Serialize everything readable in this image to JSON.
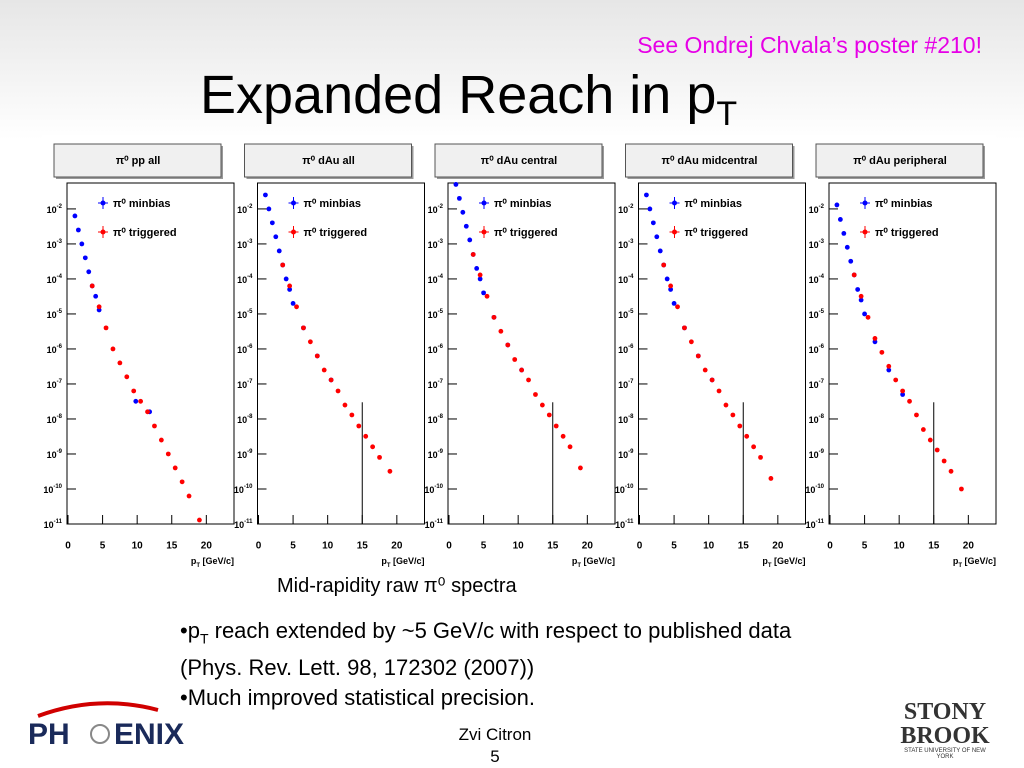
{
  "slide": {
    "note": "See Ondrej Chvala’s poster #210!",
    "title": {
      "base": "Expanded Reach in p",
      "sub": "T"
    },
    "caption": "Mid-rapidity raw π⁰ spectra",
    "bullets": [
      {
        "base": "•p",
        "sub": "T",
        "rest": " reach extended by ~5 GeV/c with respect to published data (Phys. Rev. Lett. 98, 172302 (2007))"
      },
      {
        "base": "•Much improved statistical precision.",
        "sub": "",
        "rest": ""
      }
    ],
    "author": "Zvi Citron",
    "page": "5",
    "logo_left": {
      "a": "PH",
      "b": "ENIX"
    },
    "logo_right": {
      "a": "STONY",
      "b": "BROOK",
      "c": "STATE UNIVERSITY OF NEW YORK"
    }
  },
  "chart_data": [
    {
      "type": "scatter",
      "title": "π⁰ pp all",
      "log_y": true,
      "xlabel": {
        "base": "p",
        "sub": "T",
        "rest": " [GeV/c]"
      },
      "xlim": [
        0,
        24
      ],
      "ylim": [
        1e-11,
        0.055
      ],
      "xticks": [
        0,
        5,
        10,
        15,
        20
      ],
      "yticks": [
        {
          "value": 1e-11,
          "label": "10",
          "exponent": "-11"
        },
        {
          "value": 1e-10,
          "label": "10",
          "exponent": "-10"
        },
        {
          "value": 1e-09,
          "label": "10",
          "exponent": "-9"
        },
        {
          "value": 1e-08,
          "label": "10",
          "exponent": "-8"
        },
        {
          "value": 1e-07,
          "label": "10",
          "exponent": "-7"
        },
        {
          "value": 1e-06,
          "label": "10",
          "exponent": "-6"
        },
        {
          "value": 1e-05,
          "label": "10",
          "exponent": "-5"
        },
        {
          "value": 0.0001,
          "label": "10",
          "exponent": "-4"
        },
        {
          "value": 0.001,
          "label": "10",
          "exponent": "-3"
        },
        {
          "value": 0.01,
          "label": "10",
          "exponent": "-2"
        }
      ],
      "series": [
        {
          "name": "π⁰ minbias",
          "color": "#0000ff",
          "x": [
            1,
            1.5,
            2,
            2.5,
            3,
            3.5,
            4,
            4.5,
            9.8,
            11.8
          ],
          "values": [
            0.0063,
            0.0025,
            0.001,
            0.0004,
            0.00016,
            6.3e-05,
            3.2e-05,
            1.3e-05,
            3.2e-08,
            1.6e-08
          ]
        },
        {
          "name": "π⁰ triggered",
          "color": "#ff0000",
          "x": [
            3.5,
            4.5,
            5.5,
            6.5,
            7.5,
            8.5,
            9.5,
            10.5,
            11.5,
            12.5,
            13.5,
            14.5,
            15.5,
            16.5,
            17.5,
            19
          ],
          "values": [
            6.3e-05,
            1.6e-05,
            4e-06,
            1e-06,
            4e-07,
            1.6e-07,
            6.3e-08,
            3.2e-08,
            1.6e-08,
            6.3e-09,
            2.5e-09,
            1e-09,
            4e-10,
            1.6e-10,
            6.3e-11,
            1.3e-11
          ]
        }
      ]
    },
    {
      "type": "scatter",
      "title": "π⁰ dAu all",
      "log_y": true,
      "xlabel": {
        "base": "p",
        "sub": "T",
        "rest": " [GeV/c]"
      },
      "xlim": [
        0,
        24
      ],
      "ylim": [
        1e-11,
        0.055
      ],
      "xticks": [
        0,
        5,
        10,
        15,
        20
      ],
      "yticks": [
        {
          "value": 1e-11,
          "label": "10",
          "exponent": "-11"
        },
        {
          "value": 1e-10,
          "label": "10",
          "exponent": "-10"
        },
        {
          "value": 1e-09,
          "label": "10",
          "exponent": "-9"
        },
        {
          "value": 1e-08,
          "label": "10",
          "exponent": "-8"
        },
        {
          "value": 1e-07,
          "label": "10",
          "exponent": "-7"
        },
        {
          "value": 1e-06,
          "label": "10",
          "exponent": "-6"
        },
        {
          "value": 1e-05,
          "label": "10",
          "exponent": "-5"
        },
        {
          "value": 0.0001,
          "label": "10",
          "exponent": "-4"
        },
        {
          "value": 0.001,
          "label": "10",
          "exponent": "-3"
        },
        {
          "value": 0.01,
          "label": "10",
          "exponent": "-2"
        }
      ],
      "vline": {
        "x": 15,
        "top": 3e-08
      },
      "series": [
        {
          "name": "π⁰ minbias",
          "color": "#0000ff",
          "x": [
            1,
            1.5,
            2,
            2.5,
            3,
            3.5,
            4,
            4.5,
            5,
            6.5,
            8.5,
            10.5
          ],
          "values": [
            0.025,
            0.01,
            0.004,
            0.0016,
            0.00063,
            0.00025,
            0.0001,
            5e-05,
            2e-05,
            4e-06,
            6.3e-07,
            1.3e-07
          ]
        },
        {
          "name": "π⁰ triggered",
          "color": "#ff0000",
          "x": [
            3.5,
            4.5,
            5.5,
            6.5,
            7.5,
            8.5,
            9.5,
            10.5,
            11.5,
            12.5,
            13.5,
            14.5,
            15.5,
            16.5,
            17.5,
            19
          ],
          "values": [
            0.00025,
            6.3e-05,
            1.6e-05,
            4e-06,
            1.6e-06,
            6.3e-07,
            2.5e-07,
            1.3e-07,
            6.3e-08,
            2.5e-08,
            1.3e-08,
            6.3e-09,
            3.2e-09,
            1.6e-09,
            8e-10,
            3.2e-10
          ]
        }
      ]
    },
    {
      "type": "scatter",
      "title": "π⁰ dAu central",
      "log_y": true,
      "xlabel": {
        "base": "p",
        "sub": "T",
        "rest": " [GeV/c]"
      },
      "xlim": [
        0,
        24
      ],
      "ylim": [
        1e-11,
        0.055
      ],
      "xticks": [
        0,
        5,
        10,
        15,
        20
      ],
      "yticks": [
        {
          "value": 1e-11,
          "label": "10",
          "exponent": "-11"
        },
        {
          "value": 1e-10,
          "label": "10",
          "exponent": "-10"
        },
        {
          "value": 1e-09,
          "label": "10",
          "exponent": "-9"
        },
        {
          "value": 1e-08,
          "label": "10",
          "exponent": "-8"
        },
        {
          "value": 1e-07,
          "label": "10",
          "exponent": "-7"
        },
        {
          "value": 1e-06,
          "label": "10",
          "exponent": "-6"
        },
        {
          "value": 1e-05,
          "label": "10",
          "exponent": "-5"
        },
        {
          "value": 0.0001,
          "label": "10",
          "exponent": "-4"
        },
        {
          "value": 0.001,
          "label": "10",
          "exponent": "-3"
        },
        {
          "value": 0.01,
          "label": "10",
          "exponent": "-2"
        }
      ],
      "vline": {
        "x": 15,
        "top": 3e-08
      },
      "series": [
        {
          "name": "π⁰ minbias",
          "color": "#0000ff",
          "x": [
            1,
            1.5,
            2,
            2.5,
            3,
            3.5,
            4,
            4.5,
            5,
            6.5,
            8.5,
            10.5
          ],
          "values": [
            0.05,
            0.02,
            0.008,
            0.0032,
            0.0013,
            0.0005,
            0.0002,
            0.0001,
            4e-05,
            8e-06,
            1.3e-06,
            2.5e-07
          ]
        },
        {
          "name": "π⁰ triggered",
          "color": "#ff0000",
          "x": [
            3.5,
            4.5,
            5.5,
            6.5,
            7.5,
            8.5,
            9.5,
            10.5,
            11.5,
            12.5,
            13.5,
            14.5,
            15.5,
            16.5,
            17.5,
            19
          ],
          "values": [
            0.0005,
            0.00013,
            3.2e-05,
            8e-06,
            3.2e-06,
            1.3e-06,
            5e-07,
            2.5e-07,
            1.3e-07,
            5e-08,
            2.5e-08,
            1.3e-08,
            6.3e-09,
            3.2e-09,
            1.6e-09,
            4e-10
          ]
        }
      ]
    },
    {
      "type": "scatter",
      "title": "π⁰ dAu midcentral",
      "log_y": true,
      "xlabel": {
        "base": "p",
        "sub": "T",
        "rest": " [GeV/c]"
      },
      "xlim": [
        0,
        24
      ],
      "ylim": [
        1e-11,
        0.055
      ],
      "xticks": [
        0,
        5,
        10,
        15,
        20
      ],
      "yticks": [
        {
          "value": 1e-11,
          "label": "10",
          "exponent": "-11"
        },
        {
          "value": 1e-10,
          "label": "10",
          "exponent": "-10"
        },
        {
          "value": 1e-09,
          "label": "10",
          "exponent": "-9"
        },
        {
          "value": 1e-08,
          "label": "10",
          "exponent": "-8"
        },
        {
          "value": 1e-07,
          "label": "10",
          "exponent": "-7"
        },
        {
          "value": 1e-06,
          "label": "10",
          "exponent": "-6"
        },
        {
          "value": 1e-05,
          "label": "10",
          "exponent": "-5"
        },
        {
          "value": 0.0001,
          "label": "10",
          "exponent": "-4"
        },
        {
          "value": 0.001,
          "label": "10",
          "exponent": "-3"
        },
        {
          "value": 0.01,
          "label": "10",
          "exponent": "-2"
        }
      ],
      "vline": {
        "x": 15,
        "top": 3e-08
      },
      "series": [
        {
          "name": "π⁰ minbias",
          "color": "#0000ff",
          "x": [
            1,
            1.5,
            2,
            2.5,
            3,
            3.5,
            4,
            4.5,
            5,
            6.5,
            8.5,
            10.5
          ],
          "values": [
            0.025,
            0.01,
            0.004,
            0.0016,
            0.00063,
            0.00025,
            0.0001,
            5e-05,
            2e-05,
            4e-06,
            6.3e-07,
            1.3e-07
          ]
        },
        {
          "name": "π⁰ triggered",
          "color": "#ff0000",
          "x": [
            3.5,
            4.5,
            5.5,
            6.5,
            7.5,
            8.5,
            9.5,
            10.5,
            11.5,
            12.5,
            13.5,
            14.5,
            15.5,
            16.5,
            17.5,
            19
          ],
          "values": [
            0.00025,
            6.3e-05,
            1.6e-05,
            4e-06,
            1.6e-06,
            6.3e-07,
            2.5e-07,
            1.3e-07,
            6.3e-08,
            2.5e-08,
            1.3e-08,
            6.3e-09,
            3.2e-09,
            1.6e-09,
            8e-10,
            2e-10
          ]
        }
      ]
    },
    {
      "type": "scatter",
      "title": "π⁰ dAu peripheral",
      "log_y": true,
      "xlabel": {
        "base": "p",
        "sub": "T",
        "rest": " [GeV/c]"
      },
      "xlim": [
        0,
        24
      ],
      "ylim": [
        1e-11,
        0.055
      ],
      "xticks": [
        0,
        5,
        10,
        15,
        20
      ],
      "yticks": [
        {
          "value": 1e-11,
          "label": "10",
          "exponent": "-11"
        },
        {
          "value": 1e-10,
          "label": "10",
          "exponent": "-10"
        },
        {
          "value": 1e-09,
          "label": "10",
          "exponent": "-9"
        },
        {
          "value": 1e-08,
          "label": "10",
          "exponent": "-8"
        },
        {
          "value": 1e-07,
          "label": "10",
          "exponent": "-7"
        },
        {
          "value": 1e-06,
          "label": "10",
          "exponent": "-6"
        },
        {
          "value": 1e-05,
          "label": "10",
          "exponent": "-5"
        },
        {
          "value": 0.0001,
          "label": "10",
          "exponent": "-4"
        },
        {
          "value": 0.001,
          "label": "10",
          "exponent": "-3"
        },
        {
          "value": 0.01,
          "label": "10",
          "exponent": "-2"
        }
      ],
      "vline": {
        "x": 15,
        "top": 3e-08
      },
      "series": [
        {
          "name": "π⁰ minbias",
          "color": "#0000ff",
          "x": [
            1,
            1.5,
            2,
            2.5,
            3,
            3.5,
            4,
            4.5,
            5,
            6.5,
            8.5,
            10.5
          ],
          "values": [
            0.013,
            0.005,
            0.002,
            0.0008,
            0.00032,
            0.00013,
            5e-05,
            2.5e-05,
            1e-05,
            1.6e-06,
            2.5e-07,
            5e-08
          ]
        },
        {
          "name": "π⁰ triggered",
          "color": "#ff0000",
          "x": [
            3.5,
            4.5,
            5.5,
            6.5,
            7.5,
            8.5,
            9.5,
            10.5,
            11.5,
            12.5,
            13.5,
            14.5,
            15.5,
            16.5,
            17.5,
            19
          ],
          "values": [
            0.00013,
            3.2e-05,
            8e-06,
            2e-06,
            8e-07,
            3.2e-07,
            1.3e-07,
            6.3e-08,
            3.2e-08,
            1.3e-08,
            5e-09,
            2.5e-09,
            1.3e-09,
            6.3e-10,
            3.2e-10,
            1e-10
          ]
        }
      ]
    }
  ]
}
